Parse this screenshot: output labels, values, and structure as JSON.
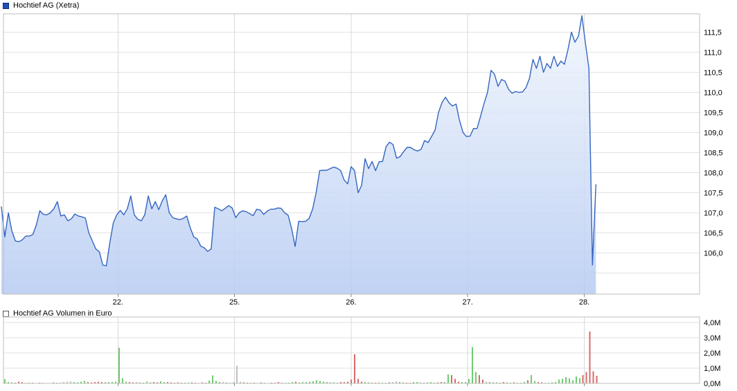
{
  "page": {
    "background": "#ffffff"
  },
  "chart_data": [
    {
      "type": "area",
      "title": "Hochtief AG (Xetra)",
      "legend_swatch_color": "#2050c0",
      "line_color": "#3465c0",
      "fill_gradient_top": "#f1f6fd",
      "fill_gradient_bottom": "#b6cbf2",
      "x_unit": "trading days (21. to 28., weekend gap between 22. and 25.)",
      "x_tick_labels": [
        "22.",
        "25.",
        "26.",
        "27.",
        "28."
      ],
      "x_tick_positions": [
        1,
        2,
        3,
        4,
        5
      ],
      "xlim": [
        0,
        6
      ],
      "ylim": [
        105.0,
        112.0
      ],
      "y_tick_labels": [
        "111,5",
        "111,0",
        "110,5",
        "110,0",
        "109,5",
        "109,0",
        "108,5",
        "108,0",
        "107,5",
        "107,0",
        "106,5",
        "106,0"
      ],
      "y_tick_values": [
        111.5,
        111.0,
        110.5,
        110.0,
        109.5,
        109.0,
        108.5,
        108.0,
        107.5,
        107.0,
        106.5,
        106.0
      ],
      "y_grid_values": [
        111.5,
        111.0,
        110.5,
        110.0,
        109.5,
        109.0,
        108.5,
        108.0,
        107.5,
        107.0,
        106.5,
        106.0,
        105.5
      ],
      "grid": true,
      "series": [
        {
          "name": "Hochtief AG (Xetra)",
          "x_start": 0.0,
          "x_step": 0.03,
          "values": [
            107.15,
            106.4,
            107.0,
            106.55,
            106.3,
            106.28,
            106.33,
            106.42,
            106.42,
            106.46,
            106.7,
            107.05,
            106.96,
            106.95,
            107.0,
            107.1,
            107.28,
            106.92,
            106.95,
            106.8,
            106.85,
            106.97,
            106.92,
            106.9,
            106.87,
            106.5,
            106.3,
            106.1,
            106.03,
            105.7,
            105.68,
            106.25,
            106.75,
            106.95,
            107.06,
            106.95,
            107.1,
            107.42,
            106.95,
            106.84,
            106.8,
            106.95,
            107.42,
            107.1,
            107.28,
            107.08,
            107.3,
            107.45,
            107.0,
            106.88,
            106.85,
            106.83,
            106.86,
            106.92,
            106.63,
            106.4,
            106.35,
            106.17,
            106.13,
            106.04,
            106.1,
            107.14,
            107.1,
            107.05,
            107.11,
            107.18,
            107.12,
            106.88,
            107.0,
            107.05,
            107.03,
            106.98,
            106.93,
            107.09,
            107.07,
            106.96,
            107.04,
            107.09,
            107.09,
            107.12,
            107.11,
            107.0,
            106.94,
            106.6,
            106.16,
            106.79,
            106.78,
            106.79,
            106.86,
            107.1,
            107.5,
            108.05,
            108.06,
            108.06,
            108.1,
            108.14,
            108.11,
            108.05,
            107.82,
            107.72,
            108.15,
            108.05,
            107.5,
            107.68,
            108.35,
            108.1,
            108.28,
            108.05,
            108.27,
            108.28,
            108.65,
            108.76,
            108.7,
            108.36,
            108.4,
            108.52,
            108.63,
            108.63,
            108.57,
            108.54,
            108.58,
            108.8,
            108.75,
            108.9,
            109.06,
            109.5,
            109.75,
            109.88,
            109.74,
            109.66,
            109.71,
            109.3,
            109.0,
            108.9,
            108.91,
            109.1,
            109.1,
            109.4,
            109.72,
            110.0,
            110.55,
            110.45,
            110.15,
            110.32,
            110.28,
            110.08,
            109.98,
            110.02,
            110.0,
            110.01,
            110.12,
            110.35,
            110.82,
            110.6,
            110.9,
            110.5,
            110.72,
            110.6,
            110.9,
            110.65,
            110.78,
            110.7,
            111.06,
            111.5,
            111.25,
            111.4,
            111.91,
            111.22,
            110.6,
            105.7,
            107.7
          ]
        }
      ]
    },
    {
      "type": "bar",
      "title": "Hochtief AG Volumen in Euro",
      "legend_swatch": "white square with gray outline",
      "y_tick_labels": [
        "4,0M",
        "3,0M",
        "2,0M",
        "1,0M",
        "0,0M"
      ],
      "y_tick_values": [
        4,
        3,
        2,
        1,
        0
      ],
      "y_grid_values": [
        4,
        3,
        2,
        1
      ],
      "ylim": [
        0,
        4.4
      ],
      "value_unit": "million EUR",
      "colors": {
        "up": "#6ecb6e",
        "down": "#d96a6a",
        "neutral": "#c0c0c0"
      },
      "bars": {
        "x_start": 0.0297,
        "x_step": 0.0297,
        "values": [
          0.28,
          0.1,
          0.06,
          0.05,
          0.12,
          0.08,
          0.05,
          0.04,
          0.04,
          0.03,
          0.05,
          0.04,
          0.03,
          0.03,
          0.06,
          0.05,
          0.04,
          0.1,
          0.12,
          0.14,
          0.1,
          0.07,
          0.12,
          0.15,
          0.08,
          0.06,
          0.1,
          0.12,
          0.09,
          0.06,
          0.08,
          0.1,
          0.12,
          2.33,
          0.35,
          0.12,
          0.08,
          0.06,
          0.1,
          0.06,
          0.05,
          0.12,
          0.07,
          0.1,
          0.06,
          0.14,
          0.1,
          0.08,
          0.06,
          0.05,
          0.06,
          0.04,
          0.05,
          0.04,
          0.06,
          0.04,
          0.03,
          0.06,
          0.05,
          0.18,
          0.52,
          0.16,
          0.1,
          0.08,
          0.06,
          0.04,
          0.1,
          1.17,
          0.12,
          0.06,
          0.05,
          0.04,
          0.05,
          0.03,
          0.06,
          0.04,
          0.03,
          0.04,
          0.05,
          0.08,
          0.06,
          0.04,
          0.05,
          0.1,
          0.12,
          0.06,
          0.08,
          0.1,
          0.12,
          0.14,
          0.2,
          0.16,
          0.12,
          0.1,
          0.08,
          0.06,
          0.05,
          0.08,
          0.1,
          0.12,
          0.25,
          1.9,
          0.3,
          0.12,
          0.08,
          0.06,
          0.05,
          0.04,
          0.06,
          0.05,
          0.04,
          0.08,
          0.1,
          0.14,
          0.08,
          0.06,
          0.05,
          0.04,
          0.08,
          0.1,
          0.06,
          0.04,
          0.06,
          0.08,
          0.05,
          0.06,
          0.08,
          0.1,
          0.6,
          0.55,
          0.3,
          0.12,
          0.08,
          0.1,
          0.3,
          2.38,
          0.75,
          0.55,
          0.25,
          0.12,
          0.1,
          0.08,
          0.06,
          0.05,
          0.08,
          0.06,
          0.04,
          0.06,
          0.05,
          0.04,
          0.08,
          0.2,
          0.54,
          0.15,
          0.08,
          0.06,
          0.05,
          0.04,
          0.06,
          0.08,
          0.25,
          0.3,
          0.4,
          0.35,
          0.2,
          0.45,
          0.35,
          0.55,
          0.75,
          3.4,
          0.8,
          0.5
        ],
        "colors": "gggrrrygrrryrgggyyyyggggrrrrrrggggggrrygrggrrggrrrrrggrrrrrggggygyyyyrrgrrrygrrryyggrgggggggggyggrrrrrrrggrrygggyyggrrggyggggrrggrrrgggggrrygygrrggrgggrggrryggggggggggrrrrrg"
      }
    }
  ],
  "axes_style": {
    "grid_h_color": "#e2e2e2",
    "grid_v_color": "#d8d8d8",
    "border_color": "#bdbdbd",
    "tick_color": "#888888",
    "label_color": "#000000"
  }
}
